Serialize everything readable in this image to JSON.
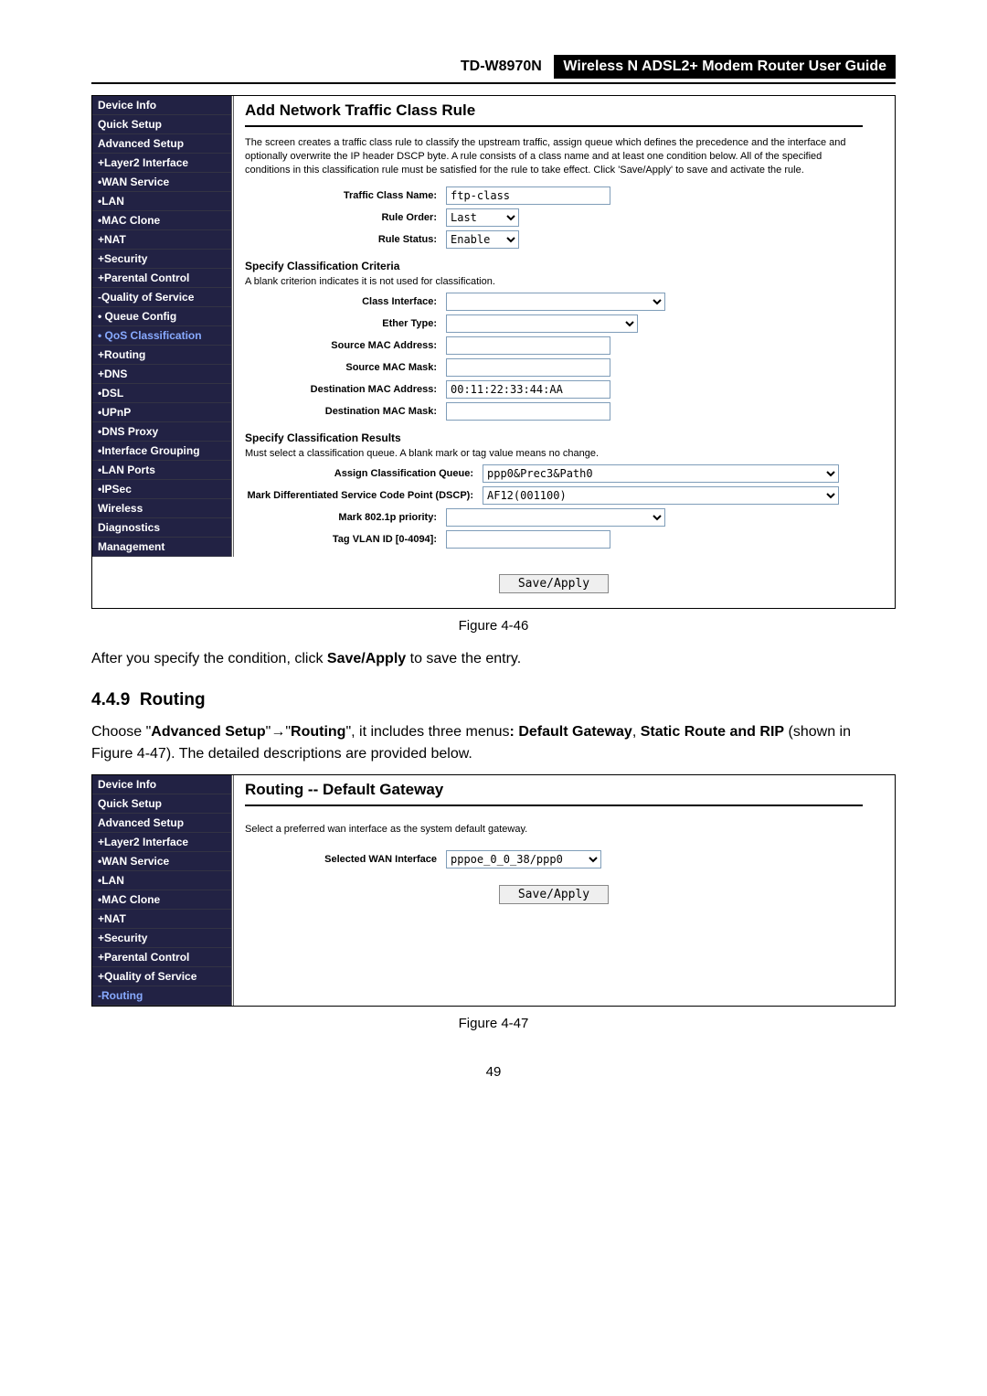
{
  "header": {
    "model": "TD-W8970N",
    "title": "Wireless  N  ADSL2+  Modem  Router  User  Guide"
  },
  "screenshot1": {
    "sidebar": [
      {
        "label": "Device Info"
      },
      {
        "label": "Quick Setup"
      },
      {
        "label": "Advanced Setup"
      },
      {
        "label": "+Layer2 Interface"
      },
      {
        "label": "•WAN Service"
      },
      {
        "label": "•LAN"
      },
      {
        "label": "•MAC Clone"
      },
      {
        "label": "+NAT"
      },
      {
        "label": "+Security"
      },
      {
        "label": "+Parental Control"
      },
      {
        "label": "-Quality of Service"
      },
      {
        "label": "• Queue Config"
      },
      {
        "label": "• QoS Classification",
        "active": true
      },
      {
        "label": "+Routing"
      },
      {
        "label": "+DNS"
      },
      {
        "label": "•DSL"
      },
      {
        "label": "•UPnP"
      },
      {
        "label": "•DNS Proxy"
      },
      {
        "label": "•Interface Grouping"
      },
      {
        "label": "•LAN Ports"
      },
      {
        "label": "•IPSec"
      },
      {
        "label": "Wireless"
      },
      {
        "label": "Diagnostics"
      },
      {
        "label": "Management"
      }
    ],
    "title": "Add Network Traffic Class Rule",
    "intro": "The screen creates a traffic class rule to classify the upstream traffic, assign queue which defines the precedence and the interface and optionally overwrite the IP header DSCP byte. A rule consists of a class name and at least one condition below. All of the specified conditions in this classification rule must be satisfied for the rule to take effect. Click 'Save/Apply' to save and activate the rule.",
    "rows1": {
      "traffic_class_name": {
        "label": "Traffic Class Name:",
        "value": "ftp-class"
      },
      "rule_order": {
        "label": "Rule Order:",
        "value": "Last"
      },
      "rule_status": {
        "label": "Rule Status:",
        "value": "Enable"
      }
    },
    "criteria_heading": "Specify Classification Criteria",
    "criteria_note": "A blank criterion indicates it is not used for classification.",
    "criteria": {
      "class_interface": {
        "label": "Class Interface:"
      },
      "ether_type": {
        "label": "Ether Type:"
      },
      "src_mac": {
        "label": "Source MAC Address:"
      },
      "src_mask": {
        "label": "Source MAC Mask:"
      },
      "dst_mac": {
        "label": "Destination MAC Address:",
        "value": "00:11:22:33:44:AA"
      },
      "dst_mask": {
        "label": "Destination MAC Mask:"
      }
    },
    "results_heading": "Specify Classification Results",
    "results_note": "Must select a classification queue. A blank mark or tag value means no change.",
    "results": {
      "queue": {
        "label": "Assign Classification Queue:",
        "value": "ppp0&Prec3&Path0"
      },
      "dscp": {
        "label": "Mark Differentiated Service Code Point (DSCP):",
        "value": "AF12(001100)"
      },
      "priority": {
        "label": "Mark 802.1p priority:"
      },
      "vlan": {
        "label": "Tag VLAN ID [0-4094]:"
      }
    },
    "apply": "Save/Apply",
    "caption": "Figure 4-46"
  },
  "text1": {
    "after_specify": "After you specify the condition, click ",
    "save_apply_bold": "Save/Apply",
    "after_specify2": " to save the entry."
  },
  "section": {
    "num": "4.4.9",
    "title": "Routing"
  },
  "text2": {
    "p1a": "Choose \"",
    "adv": "Advanced Setup",
    "p1b": "\"",
    "arrow": "→",
    "p1c": "\"",
    "routing": "Routing",
    "p1d": "\", it includes three menus",
    "menus": ": Default Gateway",
    "comma": ", ",
    "static": "Static Route and RIP",
    "p1e": " (shown in Figure 4-47). The detailed descriptions are provided below."
  },
  "screenshot2": {
    "sidebar": [
      {
        "label": "Device Info"
      },
      {
        "label": "Quick Setup"
      },
      {
        "label": "Advanced Setup"
      },
      {
        "label": "+Layer2 Interface"
      },
      {
        "label": "•WAN Service"
      },
      {
        "label": "•LAN"
      },
      {
        "label": "•MAC Clone"
      },
      {
        "label": "+NAT"
      },
      {
        "label": "+Security"
      },
      {
        "label": "+Parental Control"
      },
      {
        "label": "+Quality of Service"
      },
      {
        "label": "-Routing",
        "active": true
      }
    ],
    "title": "Routing -- Default Gateway",
    "intro": "Select a preferred wan interface as the system default gateway.",
    "row": {
      "label": "Selected WAN Interface",
      "value": "pppoe_0_0_38/ppp0"
    },
    "apply": "Save/Apply",
    "caption": "Figure 4-47"
  },
  "page_num": "49"
}
